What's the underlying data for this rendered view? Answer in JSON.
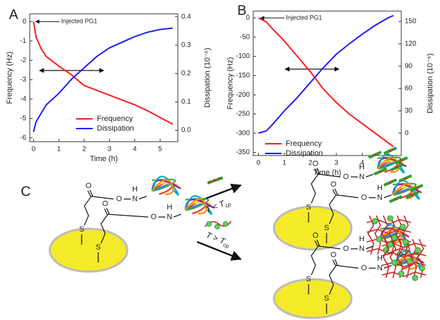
{
  "chart_data": [
    {
      "type": "line",
      "panel_label": "A",
      "x_label": "Time (h)",
      "y_label": "Frequency (Hz)",
      "y2_label": "Dissipation (10⁻⁶)",
      "annotation": "Injected PG1",
      "x": [
        0,
        0.1,
        0.3,
        0.5,
        1,
        1.5,
        2,
        2.5,
        3,
        3.5,
        4,
        4.5,
        5,
        5.5
      ],
      "series": [
        {
          "name": "Frequency",
          "color": "#ff1a1a",
          "values": [
            0,
            -0.8,
            -1.4,
            -1.8,
            -2.3,
            -2.75,
            -3.3,
            -3.55,
            -3.8,
            -4.05,
            -4.3,
            -4.6,
            -4.95,
            -5.3
          ]
        },
        {
          "name": "Dissipation",
          "color": "#1a1aff",
          "axis": "y2",
          "values": [
            -0.005,
            0.03,
            0.06,
            0.09,
            0.13,
            0.18,
            0.22,
            0.26,
            0.29,
            0.31,
            0.33,
            0.345,
            0.355,
            0.36
          ]
        }
      ],
      "xlim": [
        -0.15,
        5.7
      ],
      "xticks": [
        0,
        1,
        2,
        3,
        4,
        5
      ],
      "ylim": [
        -6.2,
        0.4
      ],
      "yticks": [
        -6,
        -5,
        -4,
        -3,
        -2,
        -1,
        0
      ],
      "y2lim": [
        -0.04,
        0.41
      ],
      "y2ticks": [
        {
          "value": 0,
          "label": "0.0"
        },
        0.1,
        0.2,
        0.3,
        0.4
      ]
    },
    {
      "type": "line",
      "panel_label": "B",
      "x_label": "Time (h)",
      "y_label": "Frequency (Hz)",
      "y2_label": "Dissipation (10⁻⁶)",
      "annotation": "Injected PG1",
      "x": [
        0,
        0.3,
        0.5,
        1,
        1.5,
        2,
        2.5,
        3,
        3.5,
        4,
        4.5,
        5,
        5.2
      ],
      "series": [
        {
          "name": "Frequency",
          "color": "#ff1a1a",
          "values": [
            0,
            -10,
            -25,
            -60,
            -100,
            -140,
            -185,
            -220,
            -250,
            -275,
            -300,
            -325,
            -335
          ]
        },
        {
          "name": "Dissipation",
          "color": "#1a1aff",
          "axis": "y2",
          "values": [
            0,
            3,
            10,
            30,
            48,
            68,
            88,
            106,
            120,
            133,
            145,
            155,
            158
          ]
        }
      ],
      "xlim": [
        -0.2,
        5.5
      ],
      "xticks": [
        0,
        1,
        2,
        3,
        4,
        5
      ],
      "ylim": [
        -358,
        18
      ],
      "yticks": [
        -350,
        -300,
        -250,
        -200,
        -150,
        -100,
        -50,
        0
      ],
      "y2lim": [
        -30,
        164
      ],
      "y2ticks": [
        0,
        30,
        60,
        90,
        120,
        150
      ]
    }
  ],
  "diagram": {
    "label": "C",
    "chain_atoms": [
      "O",
      "O",
      "N",
      "H",
      "S"
    ],
    "arrows": [
      {
        "main": "T < T",
        "sub": "cp"
      },
      {
        "main": "T > T",
        "sub": "cp"
      }
    ]
  }
}
